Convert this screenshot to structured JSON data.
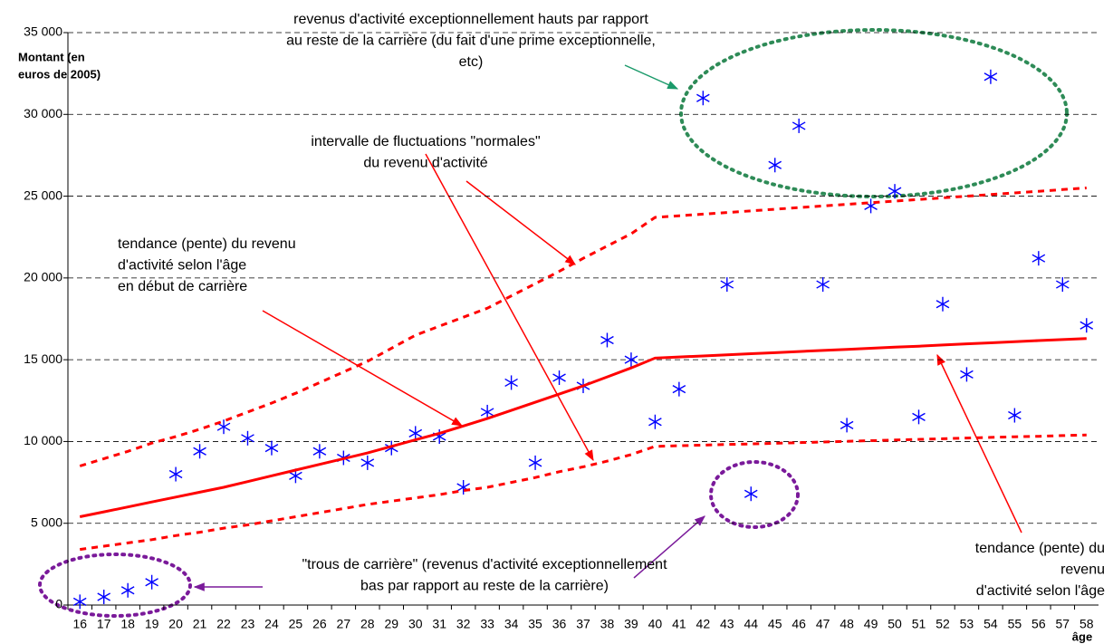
{
  "chart_data": {
    "type": "line",
    "y_label_lines": [
      "Montant (en",
      "euros de 2005)"
    ],
    "x_label": "âge",
    "categories": [
      "16",
      "17",
      "18",
      "19",
      "20",
      "21",
      "22",
      "23",
      "24",
      "25",
      "26",
      "27",
      "28",
      "29",
      "30",
      "31",
      "32",
      "33",
      "34",
      "35",
      "36",
      "37",
      "38",
      "39",
      "40",
      "41",
      "42",
      "43",
      "44",
      "45",
      "46",
      "47",
      "48",
      "49",
      "50",
      "51",
      "52",
      "53",
      "54",
      "55",
      "56",
      "57",
      "58"
    ],
    "ylim": [
      0,
      35000
    ],
    "yticks": [
      {
        "value": 0,
        "label": "0"
      },
      {
        "value": 5000,
        "label": "5 000"
      },
      {
        "value": 10000,
        "label": "10 000"
      },
      {
        "value": 15000,
        "label": "15 000"
      },
      {
        "value": 20000,
        "label": "20 000"
      },
      {
        "value": 25000,
        "label": "25 000"
      },
      {
        "value": 30000,
        "label": "30 000"
      },
      {
        "value": 35000,
        "label": "35 000"
      }
    ],
    "grid": true,
    "series": [
      {
        "color": "#0000ff",
        "marker": "asterisk",
        "values": [
          200,
          500,
          900,
          1400,
          8000,
          9400,
          10900,
          10200,
          9600,
          7900,
          9400,
          9000,
          8700,
          9600,
          10500,
          10300,
          7200,
          11800,
          13600,
          8700,
          13900,
          13400,
          16200,
          15000,
          11200,
          13200,
          31000,
          19600,
          6800,
          26900,
          29300,
          19600,
          11000,
          24400,
          25300,
          11500,
          18400,
          14100,
          32300,
          11600,
          21200,
          19600,
          17100
        ]
      },
      {
        "color": "#ff0000",
        "style": "solid",
        "values": [
          5400,
          5700,
          6000,
          6300,
          6600,
          6900,
          7200,
          7550,
          7900,
          8250,
          8600,
          8950,
          9300,
          9700,
          10100,
          10500,
          10950,
          11400,
          11900,
          12400,
          12900,
          13400,
          13950,
          14500,
          15100,
          15170,
          15230,
          15300,
          15370,
          15430,
          15500,
          15570,
          15630,
          15700,
          15770,
          15830,
          15900,
          15970,
          16030,
          16100,
          16170,
          16230,
          16300
        ]
      },
      {
        "color": "#ff0000",
        "style": "dashed",
        "values": [
          8500,
          8950,
          9400,
          9900,
          10300,
          10750,
          11250,
          11800,
          12350,
          12950,
          13600,
          14250,
          14900,
          15700,
          16500,
          17050,
          17600,
          18150,
          18900,
          19650,
          20400,
          21200,
          21950,
          22700,
          23700,
          23800,
          23900,
          24000,
          24100,
          24200,
          24300,
          24400,
          24500,
          24600,
          24700,
          24800,
          24900,
          25000,
          25100,
          25200,
          25300,
          25400,
          25500
        ]
      },
      {
        "color": "#ff0000",
        "style": "dashed",
        "values": [
          3400,
          3600,
          3800,
          4000,
          4250,
          4450,
          4700,
          4900,
          5150,
          5400,
          5650,
          5900,
          6150,
          6350,
          6550,
          6750,
          7000,
          7200,
          7500,
          7800,
          8150,
          8450,
          8800,
          9200,
          9700,
          9740,
          9780,
          9820,
          9850,
          9890,
          9930,
          9970,
          10010,
          10050,
          10090,
          10130,
          10170,
          10210,
          10250,
          10290,
          10320,
          10360,
          10400
        ]
      }
    ],
    "annotations": [
      [
        "revenus d'activité  exceptionnellement hauts par rapport",
        "au reste de la carrière (du fait d'une prime exceptionnelle,",
        "etc)"
      ],
      [
        "intervalle de fluctuations \"normales\"",
        "du revenu d'activité"
      ],
      [
        "tendance (pente) du revenu",
        "d'activité selon l'âge",
        "en début de carrière"
      ],
      [
        "\"trous de carrière\" (revenus d'activité exceptionnellement",
        "bas par rapport au reste de la carrière)"
      ],
      [
        "tendance (pente) du",
        "revenu",
        "d'activité selon l'âge"
      ]
    ]
  }
}
